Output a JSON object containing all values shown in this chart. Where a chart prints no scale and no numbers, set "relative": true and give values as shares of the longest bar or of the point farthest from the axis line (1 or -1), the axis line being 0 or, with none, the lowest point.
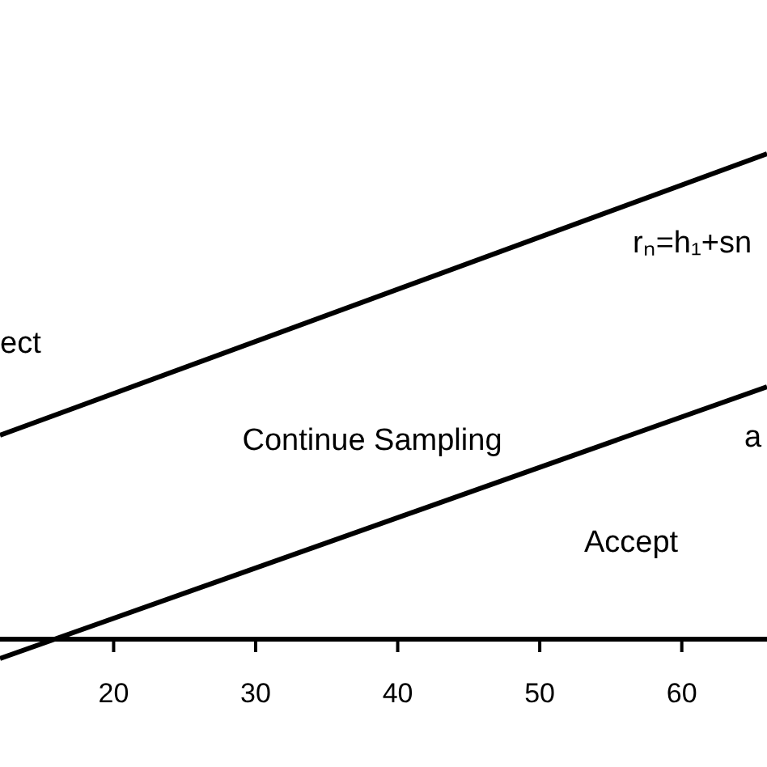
{
  "chart_data": {
    "type": "line",
    "relative": true,
    "x": [
      12,
      66
    ],
    "xlim": [
      12,
      66
    ],
    "xticks": [
      20,
      30,
      40,
      50,
      60
    ],
    "series": [
      {
        "color": "#000000",
        "values": [
          0.42,
          1
        ]
      },
      {
        "color": "#000000",
        "values": [
          -0.04,
          0.52
        ]
      }
    ],
    "annotations": [
      "ect",
      "rₙ=h₁+sn",
      "Continue Sampling",
      "Accept",
      "a"
    ],
    "grid": false,
    "marker": "none",
    "line_style": "solid"
  }
}
